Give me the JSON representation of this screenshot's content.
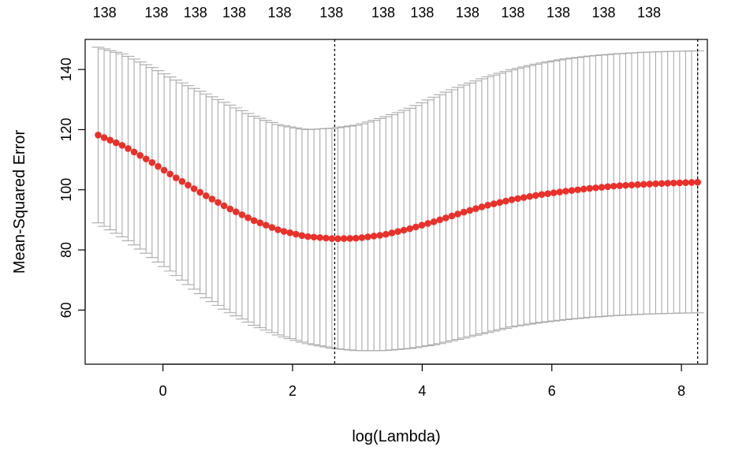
{
  "chart_data": {
    "type": "scatter",
    "xlabel": "log(Lambda)",
    "ylabel": "Mean-Squared Error",
    "xlim": [
      -1.2,
      8.4
    ],
    "ylim": [
      42,
      150
    ],
    "x_ticks": [
      0,
      2,
      4,
      6,
      8
    ],
    "y_ticks": [
      60,
      80,
      100,
      120,
      140
    ],
    "top_axis_ticks": [
      -0.9,
      -0.1,
      0.5,
      1.1,
      1.8,
      2.6,
      3.4,
      4.0,
      4.7,
      5.4,
      6.1,
      6.8,
      7.5
    ],
    "top_axis_labels": [
      "138",
      "138",
      "138",
      "138",
      "138",
      "138",
      "138",
      "138",
      "138",
      "138",
      "138",
      "138",
      "138"
    ],
    "vlines": [
      2.65,
      8.25
    ],
    "point_color": "#e8312a",
    "errorbar_color": "#aaaaaa",
    "series": [
      {
        "values": [
          {
            "x": -1.0,
            "y": 118.2,
            "lo": 89.0,
            "hi": 147.4
          },
          {
            "x": -0.6,
            "y": 114.5,
            "lo": 84.0,
            "hi": 145.0
          },
          {
            "x": -0.2,
            "y": 109.5,
            "lo": 78.0,
            "hi": 141.0
          },
          {
            "x": 0.2,
            "y": 104.0,
            "lo": 71.5,
            "hi": 136.5
          },
          {
            "x": 0.6,
            "y": 98.8,
            "lo": 65.0,
            "hi": 132.5
          },
          {
            "x": 1.0,
            "y": 94.0,
            "lo": 59.5,
            "hi": 128.5
          },
          {
            "x": 1.4,
            "y": 89.8,
            "lo": 55.0,
            "hi": 124.5
          },
          {
            "x": 1.8,
            "y": 86.5,
            "lo": 51.5,
            "hi": 121.5
          },
          {
            "x": 2.2,
            "y": 84.5,
            "lo": 49.0,
            "hi": 120.0
          },
          {
            "x": 2.65,
            "y": 83.7,
            "lo": 47.2,
            "hi": 120.5
          },
          {
            "x": 3.0,
            "y": 83.9,
            "lo": 46.5,
            "hi": 121.5
          },
          {
            "x": 3.4,
            "y": 85.0,
            "lo": 46.5,
            "hi": 124.0
          },
          {
            "x": 3.8,
            "y": 87.0,
            "lo": 47.2,
            "hi": 127.0
          },
          {
            "x": 4.2,
            "y": 89.5,
            "lo": 48.5,
            "hi": 131.0
          },
          {
            "x": 4.6,
            "y": 92.3,
            "lo": 50.5,
            "hi": 134.5
          },
          {
            "x": 5.0,
            "y": 94.8,
            "lo": 52.5,
            "hi": 137.5
          },
          {
            "x": 5.4,
            "y": 96.8,
            "lo": 54.5,
            "hi": 140.0
          },
          {
            "x": 5.8,
            "y": 98.3,
            "lo": 55.8,
            "hi": 142.0
          },
          {
            "x": 6.2,
            "y": 99.5,
            "lo": 56.8,
            "hi": 143.5
          },
          {
            "x": 6.6,
            "y": 100.5,
            "lo": 57.6,
            "hi": 144.5
          },
          {
            "x": 7.0,
            "y": 101.3,
            "lo": 58.2,
            "hi": 145.2
          },
          {
            "x": 7.4,
            "y": 101.8,
            "lo": 58.6,
            "hi": 145.7
          },
          {
            "x": 7.8,
            "y": 102.2,
            "lo": 58.9,
            "hi": 146.0
          },
          {
            "x": 8.25,
            "y": 102.5,
            "lo": 59.1,
            "hi": 146.2
          }
        ]
      }
    ]
  }
}
